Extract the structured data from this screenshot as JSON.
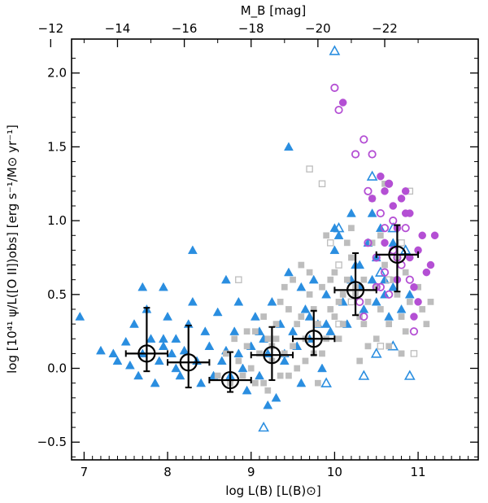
{
  "chart_data": {
    "type": "scatter",
    "xlabel": "log L(B) [L(B)⊙]",
    "ylabel": "log [10⁴¹ ψ/L([O II])obs] [erg s⁻¹/M⊙ yr⁻¹]",
    "top_xlabel": "M_B [mag]",
    "xlim": [
      6.85,
      11.72
    ],
    "ylim": [
      -0.62,
      2.23
    ],
    "top_axis": {
      "relation": "M_B = 4.5 - 2.5 * logL",
      "ticks": [
        -12,
        -14,
        -16,
        -18,
        -20,
        -22
      ],
      "tick_labels": [
        "−12",
        "−14",
        "−16",
        "−18",
        "−20",
        "−22"
      ]
    },
    "x_ticks": [
      7,
      8,
      9,
      10,
      11
    ],
    "x_tick_labels": [
      "7",
      "8",
      "9",
      "10",
      "11"
    ],
    "y_ticks": [
      -0.5,
      0.0,
      0.5,
      1.0,
      1.5,
      2.0
    ],
    "y_tick_labels": [
      "−0.5",
      "0.0",
      "0.5",
      "1.0",
      "1.5",
      "2.0"
    ],
    "series": [
      {
        "marker": "triangle-filled",
        "color": "#2a8ee0",
        "x": [
          6.95,
          7.2,
          7.35,
          7.4,
          7.5,
          7.55,
          7.6,
          7.65,
          7.7,
          7.7,
          7.75,
          7.8,
          7.85,
          7.9,
          7.95,
          7.95,
          8.0,
          8.05,
          8.1,
          8.1,
          8.15,
          8.2,
          8.25,
          8.3,
          8.35,
          8.4,
          8.45,
          8.5,
          8.55,
          8.6,
          8.65,
          8.7,
          8.75,
          8.8,
          8.85,
          8.9,
          8.95,
          9.0,
          9.05,
          9.1,
          9.15,
          9.2,
          9.25,
          9.3,
          9.35,
          9.4,
          9.45,
          9.5,
          9.55,
          9.6,
          9.65,
          9.7,
          9.75,
          9.8,
          9.85,
          9.9,
          9.95,
          10.0,
          10.05,
          10.1,
          10.15,
          10.2,
          10.25,
          10.3,
          10.35,
          10.4,
          10.45,
          10.5,
          10.55,
          10.6,
          10.65,
          10.7,
          10.8,
          7.95,
          8.7,
          9.2,
          9.4,
          9.6,
          9.9,
          10.0,
          10.3,
          10.5,
          10.7,
          8.3,
          8.85,
          9.1,
          9.45,
          9.7,
          10.2,
          10.45,
          10.6,
          10.9
        ],
        "y": [
          0.35,
          0.12,
          0.1,
          0.05,
          0.18,
          0.02,
          0.3,
          -0.05,
          0.55,
          0.1,
          0.4,
          0.2,
          -0.1,
          0.05,
          0.15,
          0.55,
          0.35,
          0.1,
          0.0,
          0.2,
          -0.05,
          0.12,
          0.3,
          0.45,
          0.05,
          -0.1,
          0.25,
          0.15,
          -0.05,
          0.38,
          0.05,
          0.6,
          -0.05,
          0.25,
          0.1,
          0.0,
          -0.15,
          0.15,
          0.35,
          -0.05,
          0.2,
          0.1,
          0.45,
          -0.2,
          0.3,
          0.05,
          1.5,
          0.25,
          0.15,
          -0.1,
          0.4,
          0.2,
          0.6,
          0.3,
          0.0,
          0.5,
          0.25,
          0.8,
          0.9,
          0.45,
          0.3,
          1.05,
          0.7,
          0.55,
          0.4,
          0.85,
          0.6,
          0.75,
          0.95,
          0.5,
          0.35,
          0.85,
          0.4,
          0.2,
          0.12,
          -0.25,
          0.1,
          0.55,
          0.3,
          0.95,
          0.7,
          0.45,
          0.55,
          0.8,
          0.45,
          0.25,
          0.65,
          0.35,
          0.6,
          1.05,
          0.6,
          0.5
        ]
      },
      {
        "marker": "triangle-open",
        "color": "#2a8ee0",
        "x": [
          9.15,
          10.0,
          10.05,
          10.45,
          10.5,
          10.55,
          10.7,
          10.85,
          9.9,
          10.35,
          10.7,
          10.9
        ],
        "y": [
          -0.4,
          2.15,
          0.95,
          1.3,
          0.1,
          0.65,
          0.95,
          0.8,
          -0.1,
          -0.05,
          0.15,
          -0.05
        ]
      },
      {
        "marker": "square-filled",
        "color": "#bdbdbd",
        "x": [
          8.6,
          8.7,
          8.75,
          8.8,
          8.85,
          8.9,
          8.95,
          9.0,
          9.05,
          9.1,
          9.15,
          9.2,
          9.25,
          9.3,
          9.35,
          9.4,
          9.45,
          9.5,
          9.55,
          9.6,
          9.65,
          9.7,
          9.75,
          9.8,
          9.85,
          9.9,
          9.95,
          10.0,
          10.05,
          10.1,
          10.15,
          10.2,
          10.25,
          10.3,
          10.35,
          10.4,
          10.45,
          10.5,
          10.55,
          10.6,
          10.65,
          10.7,
          10.75,
          10.8,
          10.85,
          10.9,
          11.0,
          11.05,
          11.1,
          11.15,
          8.95,
          9.05,
          9.15,
          9.25,
          9.35,
          9.45,
          9.55,
          9.65,
          9.75,
          9.85,
          9.95,
          10.05,
          10.15,
          10.25,
          10.35,
          10.45,
          10.55,
          10.65,
          10.75,
          10.85,
          9.2,
          9.4,
          9.6,
          9.8,
          10.0,
          10.2,
          10.4,
          10.6,
          10.8,
          9.3,
          9.5,
          9.7,
          9.9,
          10.1,
          10.3,
          10.5
        ],
        "y": [
          -0.05,
          0.1,
          -0.1,
          0.2,
          0.05,
          -0.05,
          0.15,
          0.0,
          0.25,
          0.1,
          -0.1,
          0.2,
          0.05,
          0.3,
          -0.05,
          0.1,
          0.4,
          0.15,
          0.0,
          0.35,
          0.2,
          0.5,
          0.1,
          0.3,
          0.55,
          0.2,
          0.4,
          0.65,
          0.45,
          0.3,
          0.6,
          0.75,
          0.5,
          0.35,
          0.6,
          0.45,
          0.85,
          0.55,
          0.4,
          0.7,
          0.3,
          0.6,
          0.5,
          0.35,
          0.65,
          0.45,
          0.55,
          0.4,
          0.3,
          0.45,
          0.25,
          -0.1,
          0.35,
          0.15,
          0.45,
          -0.05,
          0.3,
          0.05,
          0.4,
          0.1,
          0.6,
          0.2,
          0.85,
          0.55,
          0.3,
          1.15,
          0.9,
          0.15,
          0.75,
          0.25,
          -0.15,
          0.55,
          0.7,
          -0.1,
          0.35,
          0.95,
          0.15,
          1.25,
          0.1,
          0.2,
          0.6,
          0.65,
          0.9,
          0.5,
          0.05,
          0.2
        ]
      },
      {
        "marker": "square-open",
        "color": "#bdbdbd",
        "x": [
          8.85,
          9.7,
          9.85,
          9.95,
          10.05,
          10.2,
          10.55,
          10.65,
          10.8,
          10.95,
          10.9,
          10.05
        ],
        "y": [
          0.6,
          1.35,
          1.25,
          0.85,
          0.7,
          0.45,
          0.15,
          0.6,
          0.85,
          0.1,
          1.2,
          0.3
        ]
      },
      {
        "marker": "circle-filled",
        "color": "#b44fd4",
        "x": [
          10.1,
          10.45,
          10.55,
          10.6,
          10.65,
          10.7,
          10.75,
          10.8,
          10.85,
          10.9,
          10.95,
          11.0,
          11.05,
          11.15,
          11.2,
          10.75,
          10.95,
          10.6,
          10.85,
          10.9,
          11.0,
          11.1
        ],
        "y": [
          1.8,
          1.15,
          1.3,
          1.2,
          1.25,
          1.1,
          0.95,
          1.15,
          1.05,
          0.75,
          0.55,
          0.8,
          0.9,
          0.7,
          0.9,
          0.6,
          0.35,
          0.85,
          1.2,
          1.05,
          0.45,
          0.65
        ]
      },
      {
        "marker": "circle-open",
        "color": "#b44fd4",
        "x": [
          10.0,
          10.05,
          10.25,
          10.35,
          10.4,
          10.45,
          10.55,
          10.6,
          10.65,
          10.7,
          10.75,
          10.8,
          10.85,
          10.3,
          10.5,
          10.9,
          10.95,
          10.35,
          10.4,
          10.55,
          10.6,
          10.7,
          10.5,
          10.65
        ],
        "y": [
          1.9,
          1.75,
          1.45,
          1.55,
          1.2,
          1.45,
          1.05,
          0.95,
          1.25,
          0.8,
          0.75,
          0.7,
          0.95,
          0.45,
          0.55,
          0.6,
          0.25,
          0.35,
          0.85,
          0.55,
          0.65,
          1.0,
          0.75,
          0.5
        ]
      }
    ],
    "binned_means": {
      "marker": "circle-open-large",
      "color": "#000000",
      "x": [
        7.75,
        8.25,
        8.75,
        9.25,
        9.75,
        10.25,
        10.75
      ],
      "y": [
        0.1,
        0.04,
        -0.08,
        0.09,
        0.2,
        0.53,
        0.77
      ],
      "x_err": [
        0.25,
        0.25,
        0.25,
        0.25,
        0.25,
        0.25,
        0.25
      ],
      "y_err_low": [
        0.12,
        0.17,
        0.08,
        0.17,
        0.11,
        0.17,
        0.25
      ],
      "y_err_high": [
        0.31,
        0.25,
        0.19,
        0.19,
        0.19,
        0.25,
        0.2
      ]
    }
  }
}
